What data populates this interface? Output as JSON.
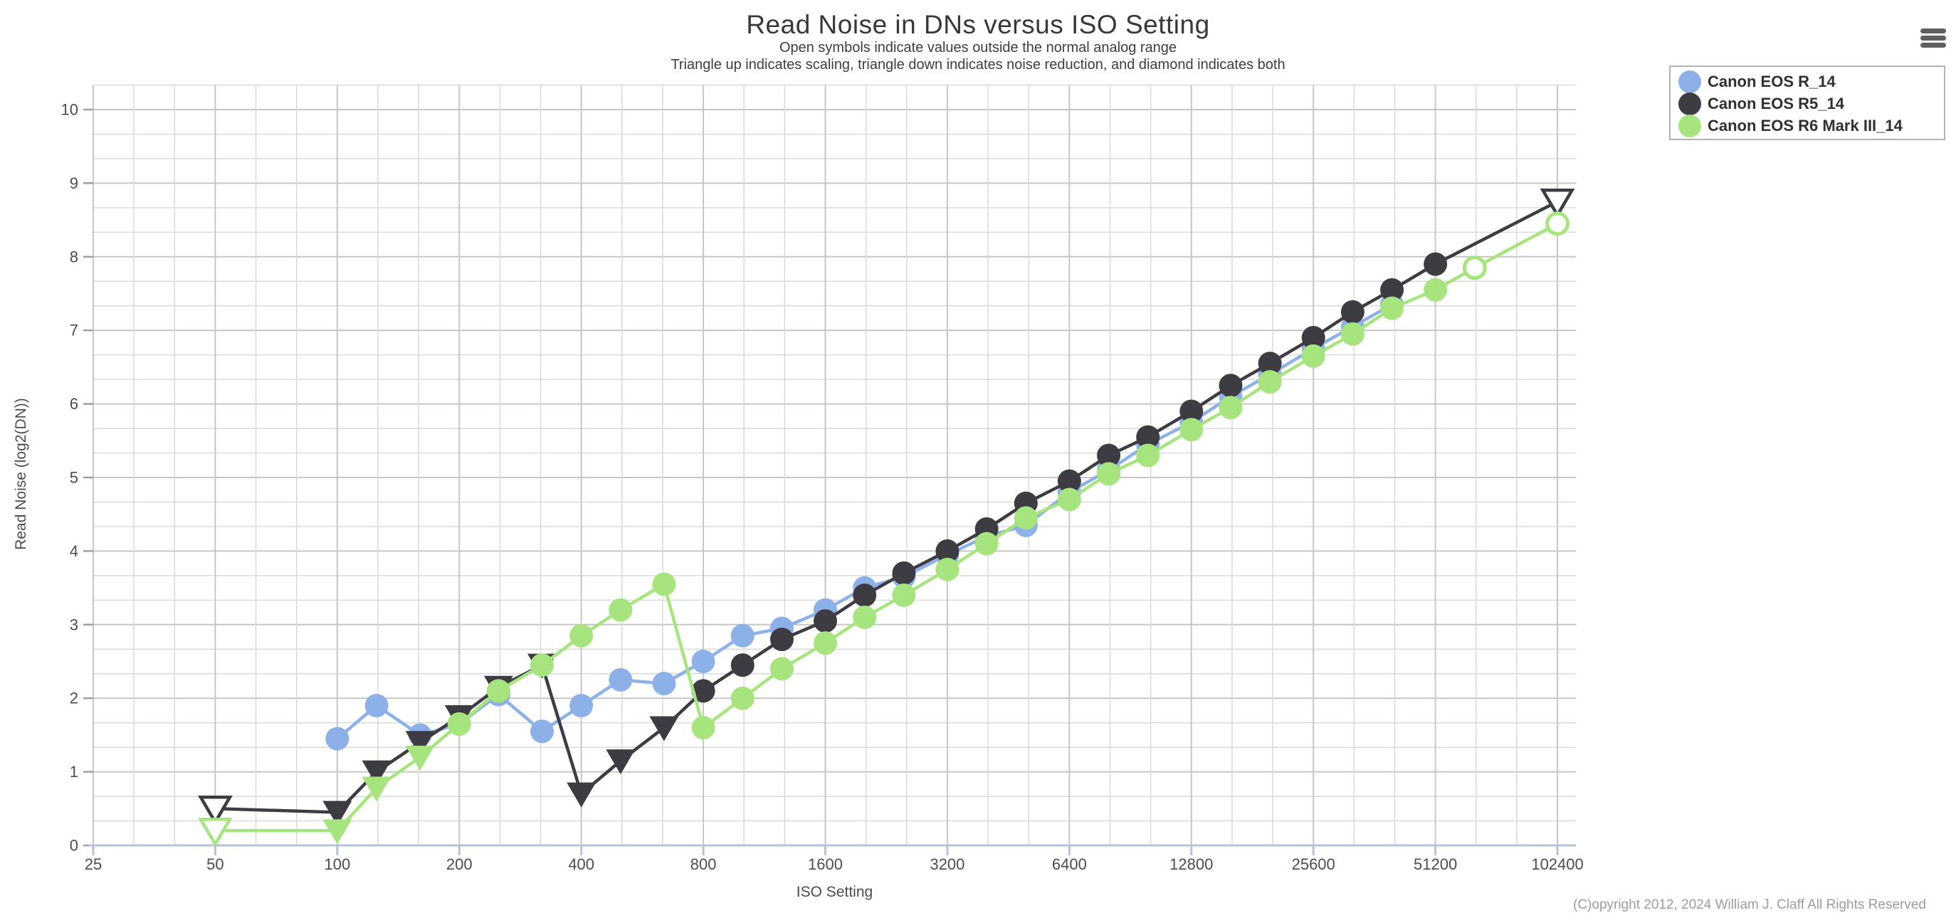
{
  "header": {
    "title": "Read Noise in DNs versus ISO Setting",
    "subtitle_line1": "Open symbols indicate values outside the normal analog range",
    "subtitle_line2": "Triangle up indicates scaling, triangle down indicates noise reduction, and diamond indicates both"
  },
  "legend": {
    "position": "top-right",
    "items": [
      {
        "label": "Canon EOS R_14",
        "color": "#8cb1e8"
      },
      {
        "label": "Canon EOS R5_14",
        "color": "#3c3c42"
      },
      {
        "label": "Canon EOS R6 Mark III_14",
        "color": "#a6e47e"
      }
    ]
  },
  "menu": {
    "icon": "hamburger-icon"
  },
  "footer": {
    "copyright": "(C)opyright 2012, 2024 William J. Claff All Rights Reserved"
  },
  "chart_data": {
    "type": "line",
    "title": "Read Noise in DNs versus ISO Setting",
    "xlabel": "ISO Setting",
    "ylabel": "Read Noise (log2(DN))",
    "x_scale": "log2",
    "xlim": [
      25,
      114000
    ],
    "ylim": [
      0,
      10.33
    ],
    "grid": {
      "visible": true,
      "x_minor_divisions_per_octave": 3,
      "y_minor_step": 0.3333
    },
    "x_ticks": [
      25,
      50,
      100,
      200,
      400,
      800,
      1600,
      3200,
      6400,
      12800,
      25600,
      51200,
      102400
    ],
    "y_ticks": [
      0,
      1,
      2,
      3,
      4,
      5,
      6,
      7,
      8,
      9,
      10
    ],
    "marker_legend": "open = outside normal analog range; triangle-down = noise reduction applied",
    "series": [
      {
        "name": "Canon EOS R_14",
        "color": "#8cb1e8",
        "points": [
          {
            "iso": 100,
            "y": 1.45,
            "m": "circle"
          },
          {
            "iso": 125,
            "y": 1.9,
            "m": "circle"
          },
          {
            "iso": 160,
            "y": 1.5,
            "m": "circle"
          },
          {
            "iso": 200,
            "y": 1.65,
            "m": "circle"
          },
          {
            "iso": 250,
            "y": 2.05,
            "m": "circle"
          },
          {
            "iso": 320,
            "y": 1.55,
            "m": "circle"
          },
          {
            "iso": 400,
            "y": 1.9,
            "m": "circle"
          },
          {
            "iso": 500,
            "y": 2.25,
            "m": "circle"
          },
          {
            "iso": 640,
            "y": 2.2,
            "m": "circle"
          },
          {
            "iso": 800,
            "y": 2.5,
            "m": "circle"
          },
          {
            "iso": 1000,
            "y": 2.85,
            "m": "circle"
          },
          {
            "iso": 1250,
            "y": 2.95,
            "m": "circle"
          },
          {
            "iso": 1600,
            "y": 3.2,
            "m": "circle"
          },
          {
            "iso": 2000,
            "y": 3.5,
            "m": "circle"
          },
          {
            "iso": 2500,
            "y": 3.65,
            "m": "circle"
          },
          {
            "iso": 3200,
            "y": 3.95,
            "m": "circle"
          },
          {
            "iso": 4000,
            "y": 4.2,
            "m": "circle"
          },
          {
            "iso": 5000,
            "y": 4.35,
            "m": "circle"
          },
          {
            "iso": 6400,
            "y": 4.8,
            "m": "circle"
          },
          {
            "iso": 8000,
            "y": 5.1,
            "m": "circle"
          },
          {
            "iso": 10000,
            "y": 5.45,
            "m": "circle"
          },
          {
            "iso": 12800,
            "y": 5.75,
            "m": "circle"
          },
          {
            "iso": 16000,
            "y": 6.1,
            "m": "circle"
          },
          {
            "iso": 20000,
            "y": 6.4,
            "m": "circle"
          },
          {
            "iso": 25600,
            "y": 6.75,
            "m": "circle"
          },
          {
            "iso": 32000,
            "y": 7.05,
            "m": "circle"
          },
          {
            "iso": 40000,
            "y": 7.35,
            "m": "circle"
          }
        ]
      },
      {
        "name": "Canon EOS R5_14",
        "color": "#3c3c42",
        "points": [
          {
            "iso": 50,
            "y": 0.5,
            "m": "triangle-down",
            "open": true
          },
          {
            "iso": 100,
            "y": 0.45,
            "m": "triangle-down"
          },
          {
            "iso": 125,
            "y": 1.0,
            "m": "triangle-down"
          },
          {
            "iso": 160,
            "y": 1.4,
            "m": "triangle-down"
          },
          {
            "iso": 200,
            "y": 1.75,
            "m": "triangle-down"
          },
          {
            "iso": 250,
            "y": 2.15,
            "m": "triangle-down"
          },
          {
            "iso": 320,
            "y": 2.45,
            "m": "triangle-down"
          },
          {
            "iso": 400,
            "y": 0.7,
            "m": "triangle-down"
          },
          {
            "iso": 500,
            "y": 1.15,
            "m": "triangle-down"
          },
          {
            "iso": 640,
            "y": 1.6,
            "m": "triangle-down"
          },
          {
            "iso": 800,
            "y": 2.1,
            "m": "circle"
          },
          {
            "iso": 1000,
            "y": 2.45,
            "m": "circle"
          },
          {
            "iso": 1250,
            "y": 2.8,
            "m": "circle"
          },
          {
            "iso": 1600,
            "y": 3.05,
            "m": "circle"
          },
          {
            "iso": 2000,
            "y": 3.4,
            "m": "circle"
          },
          {
            "iso": 2500,
            "y": 3.7,
            "m": "circle"
          },
          {
            "iso": 3200,
            "y": 4.0,
            "m": "circle"
          },
          {
            "iso": 4000,
            "y": 4.3,
            "m": "circle"
          },
          {
            "iso": 5000,
            "y": 4.65,
            "m": "circle"
          },
          {
            "iso": 6400,
            "y": 4.95,
            "m": "circle"
          },
          {
            "iso": 8000,
            "y": 5.3,
            "m": "circle"
          },
          {
            "iso": 10000,
            "y": 5.55,
            "m": "circle"
          },
          {
            "iso": 12800,
            "y": 5.9,
            "m": "circle"
          },
          {
            "iso": 16000,
            "y": 6.25,
            "m": "circle"
          },
          {
            "iso": 20000,
            "y": 6.55,
            "m": "circle"
          },
          {
            "iso": 25600,
            "y": 6.9,
            "m": "circle"
          },
          {
            "iso": 32000,
            "y": 7.25,
            "m": "circle"
          },
          {
            "iso": 40000,
            "y": 7.55,
            "m": "circle"
          },
          {
            "iso": 51200,
            "y": 7.9,
            "m": "circle"
          },
          {
            "iso": 102400,
            "y": 8.75,
            "m": "triangle-down",
            "open": true
          }
        ]
      },
      {
        "name": "Canon EOS R6 Mark III_14",
        "color": "#a6e47e",
        "points": [
          {
            "iso": 50,
            "y": 0.2,
            "m": "triangle-down",
            "open": true
          },
          {
            "iso": 100,
            "y": 0.2,
            "m": "triangle-down"
          },
          {
            "iso": 125,
            "y": 0.78,
            "m": "triangle-down"
          },
          {
            "iso": 160,
            "y": 1.2,
            "m": "triangle-down"
          },
          {
            "iso": 200,
            "y": 1.65,
            "m": "circle"
          },
          {
            "iso": 250,
            "y": 2.1,
            "m": "circle"
          },
          {
            "iso": 320,
            "y": 2.45,
            "m": "circle"
          },
          {
            "iso": 400,
            "y": 2.85,
            "m": "circle"
          },
          {
            "iso": 500,
            "y": 3.2,
            "m": "circle"
          },
          {
            "iso": 640,
            "y": 3.55,
            "m": "circle"
          },
          {
            "iso": 800,
            "y": 1.6,
            "m": "circle"
          },
          {
            "iso": 1000,
            "y": 2.0,
            "m": "circle"
          },
          {
            "iso": 1250,
            "y": 2.4,
            "m": "circle"
          },
          {
            "iso": 1600,
            "y": 2.75,
            "m": "circle"
          },
          {
            "iso": 2000,
            "y": 3.1,
            "m": "circle"
          },
          {
            "iso": 2500,
            "y": 3.4,
            "m": "circle"
          },
          {
            "iso": 3200,
            "y": 3.75,
            "m": "circle"
          },
          {
            "iso": 4000,
            "y": 4.1,
            "m": "circle"
          },
          {
            "iso": 5000,
            "y": 4.45,
            "m": "circle"
          },
          {
            "iso": 6400,
            "y": 4.7,
            "m": "circle"
          },
          {
            "iso": 8000,
            "y": 5.05,
            "m": "circle"
          },
          {
            "iso": 10000,
            "y": 5.3,
            "m": "circle"
          },
          {
            "iso": 12800,
            "y": 5.65,
            "m": "circle"
          },
          {
            "iso": 16000,
            "y": 5.95,
            "m": "circle"
          },
          {
            "iso": 20000,
            "y": 6.3,
            "m": "circle"
          },
          {
            "iso": 25600,
            "y": 6.65,
            "m": "circle"
          },
          {
            "iso": 32000,
            "y": 6.95,
            "m": "circle"
          },
          {
            "iso": 40000,
            "y": 7.3,
            "m": "circle"
          },
          {
            "iso": 51200,
            "y": 7.55,
            "m": "circle"
          },
          {
            "iso": 64000,
            "y": 7.85,
            "m": "circle",
            "open": true
          },
          {
            "iso": 102400,
            "y": 8.45,
            "m": "circle",
            "open": true
          }
        ]
      }
    ]
  }
}
